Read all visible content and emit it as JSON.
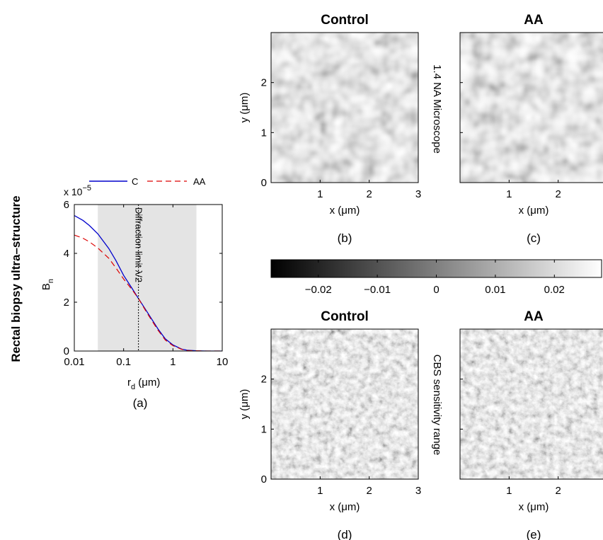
{
  "figure": {
    "row_label": "Rectal biopsy ultra–structure",
    "mid_label_top": "1.4 NA Microscope",
    "mid_label_bottom": "CBS sensitivity range"
  },
  "panel_a": {
    "caption": "(a)",
    "exponent_label": "x 10",
    "exponent_power": "−5",
    "ylabel_main": "B",
    "ylabel_sub": "n",
    "xlabel_main": "r",
    "xlabel_sub": "d",
    "xlabel_unit": " (μm)",
    "annotation": "Diffraction limit λ/2"
  },
  "image_panels": [
    {
      "id": "b",
      "title": "Control",
      "title_color": "#0000ee",
      "caption": "(b)",
      "xlabel": "x (μm)",
      "ylabel": "y (μm)",
      "texture": "smooth"
    },
    {
      "id": "c",
      "title": "AA",
      "title_color": "#ee0000",
      "caption": "(c)",
      "xlabel": "x (μm)",
      "ylabel": "",
      "texture": "smooth"
    },
    {
      "id": "d",
      "title": "Control",
      "title_color": "#0000ee",
      "caption": "(d)",
      "xlabel": "x (μm)",
      "ylabel": "y (μm)",
      "texture": "grainy"
    },
    {
      "id": "e",
      "title": "AA",
      "title_color": "#ee0000",
      "caption": "(e)",
      "xlabel": "x (μm)",
      "ylabel": "",
      "texture": "grainy"
    }
  ],
  "colorbar": {
    "colormap": "gray",
    "range": [
      -0.028,
      0.028
    ],
    "ticks": [
      -0.02,
      -0.01,
      0,
      0.01,
      0.02
    ],
    "tick_labels": [
      "−0.02",
      "−0.01",
      "0",
      "0.01",
      "0.02"
    ]
  },
  "chart_data": {
    "type": "line",
    "title": "",
    "xlabel": "r_d (μm)",
    "ylabel": "B_n",
    "xscale": "log",
    "xlim": [
      0.01,
      10
    ],
    "ylim": [
      0,
      6
    ],
    "y_multiplier": "x 10^-5",
    "xticks": [
      0.01,
      0.1,
      1,
      10
    ],
    "xtick_labels": [
      "0.01",
      "0.1",
      "1",
      "10"
    ],
    "yticks": [
      0,
      2,
      4,
      6
    ],
    "ytick_labels": [
      "0",
      "2",
      "4",
      "6"
    ],
    "shaded_region": {
      "x": [
        0.03,
        3.0
      ],
      "color": "#e4e4e4"
    },
    "vline": {
      "x": 0.2,
      "label": "Diffraction limit λ/2"
    },
    "legend": "top",
    "series": [
      {
        "name": "C",
        "color": "#0000cc",
        "style": "solid",
        "x": [
          0.01,
          0.015,
          0.02,
          0.03,
          0.05,
          0.07,
          0.1,
          0.15,
          0.2,
          0.3,
          0.5,
          0.7,
          1,
          1.5,
          2,
          3,
          5,
          10
        ],
        "y": [
          5.55,
          5.35,
          5.15,
          4.8,
          4.2,
          3.7,
          3.1,
          2.55,
          2.15,
          1.6,
          0.9,
          0.5,
          0.25,
          0.08,
          0.03,
          0.01,
          0,
          0
        ]
      },
      {
        "name": "AA",
        "color": "#dd0000",
        "style": "dashed",
        "x": [
          0.01,
          0.015,
          0.02,
          0.03,
          0.05,
          0.07,
          0.1,
          0.15,
          0.2,
          0.3,
          0.5,
          0.7,
          1,
          1.5,
          2,
          3,
          5,
          10
        ],
        "y": [
          4.75,
          4.62,
          4.48,
          4.22,
          3.8,
          3.4,
          2.95,
          2.5,
          2.15,
          1.55,
          0.85,
          0.45,
          0.22,
          0.07,
          0.02,
          0.01,
          0,
          0
        ]
      }
    ]
  },
  "image_axes": {
    "xlim": [
      0,
      3
    ],
    "ylim": [
      0,
      3
    ],
    "xticks": [
      1,
      2,
      3
    ],
    "xtick_labels": [
      "1",
      "2",
      "3"
    ],
    "yticks": [
      0,
      1,
      2
    ],
    "ytick_labels": [
      "0",
      "1",
      "2"
    ]
  }
}
